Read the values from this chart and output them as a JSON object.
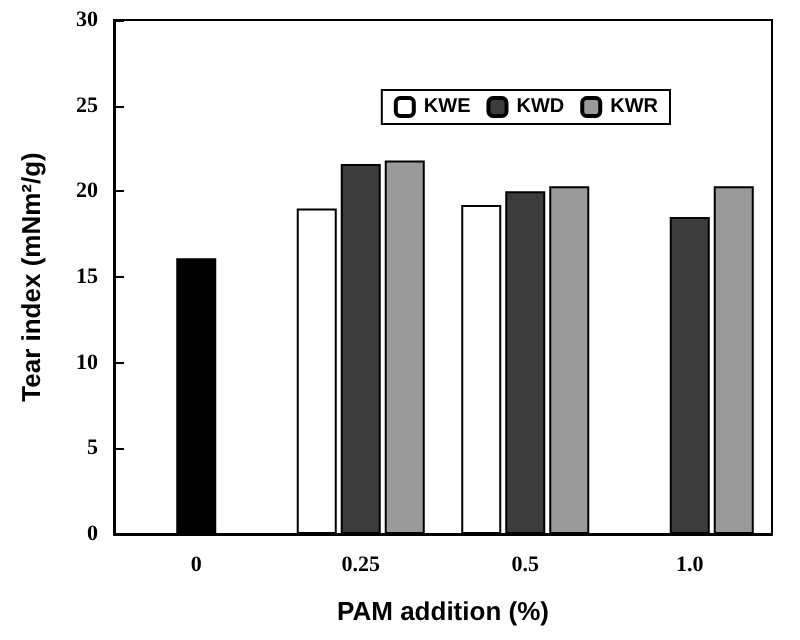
{
  "chart_data": {
    "type": "bar",
    "xlabel": "PAM addition (%)",
    "ylabel": "Tear index (mNm²/g)",
    "categories": [
      "0",
      "0.25",
      "0.5",
      "1.0"
    ],
    "series": [
      {
        "color": "#000000",
        "values": [
          16.1,
          null,
          null,
          null
        ]
      },
      {
        "name": "KWE",
        "color": "#ffffff",
        "values": [
          null,
          19.0,
          19.2,
          null
        ]
      },
      {
        "name": "KWD",
        "color": "#3c3c3c",
        "values": [
          null,
          21.6,
          20.0,
          18.5
        ]
      },
      {
        "name": "KWR",
        "color": "#9a9a9a",
        "values": [
          null,
          21.8,
          20.3,
          20.3
        ]
      }
    ],
    "ylim": [
      0,
      30
    ],
    "yticks": [
      0,
      5,
      10,
      15,
      20,
      25,
      30
    ],
    "grid": false,
    "legend": "top right"
  }
}
